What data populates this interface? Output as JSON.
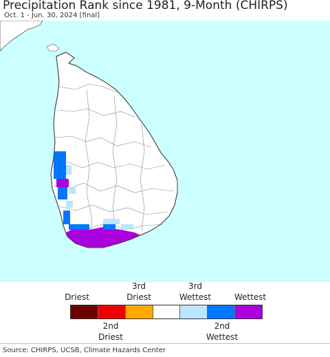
{
  "header": {
    "title": "Precipitation Rank since 1981, 9-Month (CHIRPS)",
    "subtitle": "Oct. 1 - Jun. 30, 2024 [final]"
  },
  "map": {
    "ocean_color": "#ccffff",
    "land_color": "#ffffff",
    "boundary_color": "#888888",
    "regions": [
      {
        "category": "Wettest",
        "area": "south and southwest coast",
        "color": "#aa00dd"
      },
      {
        "category": "2nd Wettest",
        "area": "western coast",
        "color": "#0077ff"
      },
      {
        "category": "3rd Wettest",
        "area": "scattered southwest",
        "color": "#bbe6ff"
      }
    ]
  },
  "legend": {
    "top_labels": [
      "Driest",
      "3rd\nDriest",
      "3rd\nWettest",
      "Wettest"
    ],
    "bottom_labels": [
      "2nd\nDriest",
      "2nd\nWettest"
    ],
    "colors": [
      "#6b0000",
      "#ee0000",
      "#ffaa00",
      "#ffffff",
      "#bbe6ff",
      "#0077ff",
      "#aa00dd"
    ]
  },
  "footer": {
    "source": "Source: CHIRPS, UCSB, Climate Hazards Center"
  }
}
